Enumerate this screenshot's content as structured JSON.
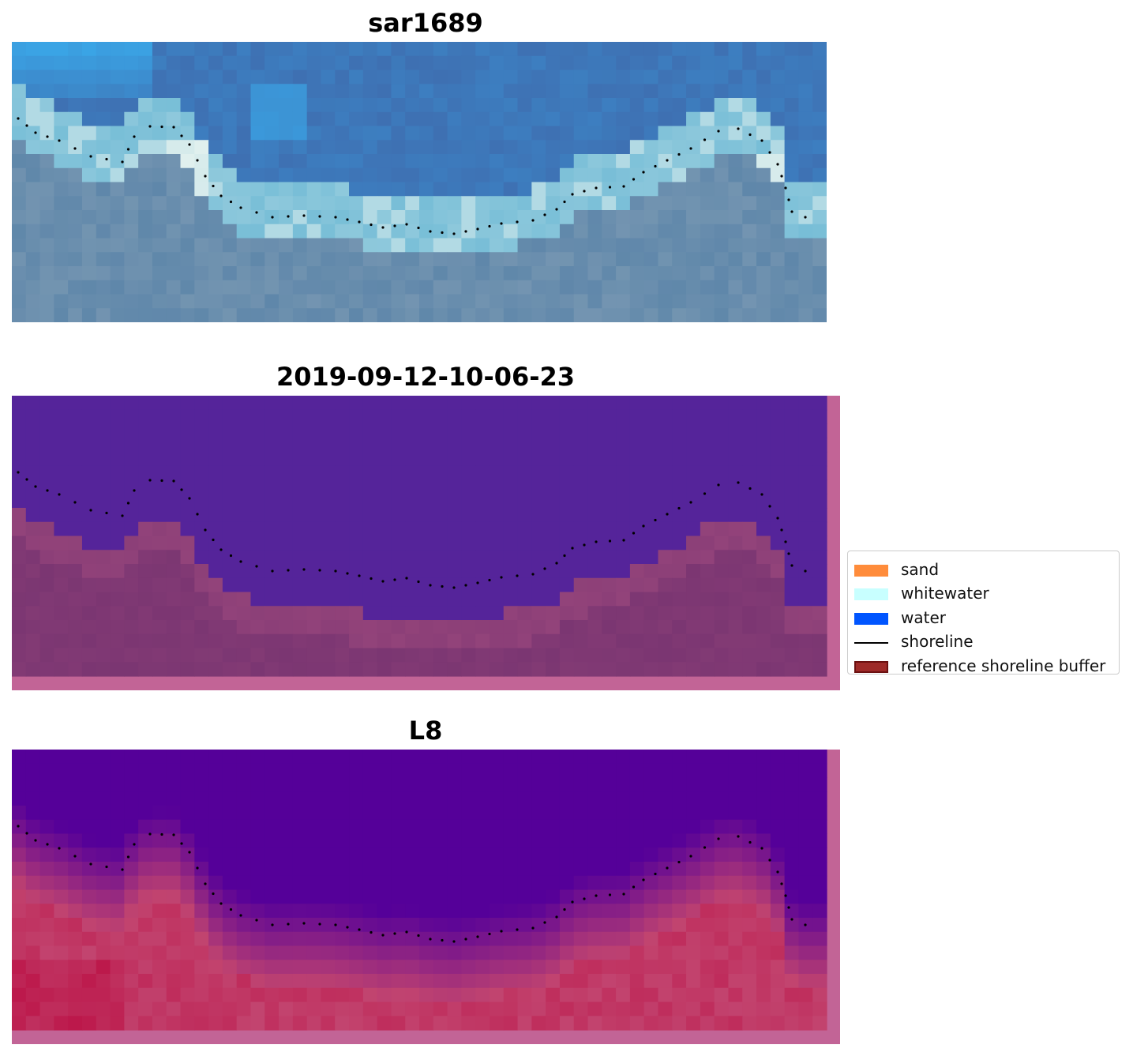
{
  "panels": [
    {
      "id": "rgb",
      "title": "sar1689"
    },
    {
      "id": "classified",
      "title": "2019-09-12-10-06-23"
    },
    {
      "id": "index",
      "title": "L8"
    }
  ],
  "legend": {
    "items": [
      {
        "label": "sand",
        "type": "patch",
        "color": "#ff8c3b"
      },
      {
        "label": "whitewater",
        "type": "patch",
        "color": "#c8ffff"
      },
      {
        "label": "water",
        "type": "patch",
        "color": "#0055ff"
      },
      {
        "label": "shoreline",
        "type": "line",
        "color": "#000000"
      },
      {
        "label": "reference shoreline buffer",
        "type": "patch",
        "color": "#9e2a28",
        "edge": "#6b1010"
      }
    ]
  },
  "colors": {
    "classified_water": "#55249a",
    "classified_land": "#7b3672",
    "buffer_edge": "#c26496",
    "index_water": "#550099",
    "index_land": "#c2446f",
    "shoreline_dots": "#000000"
  }
}
